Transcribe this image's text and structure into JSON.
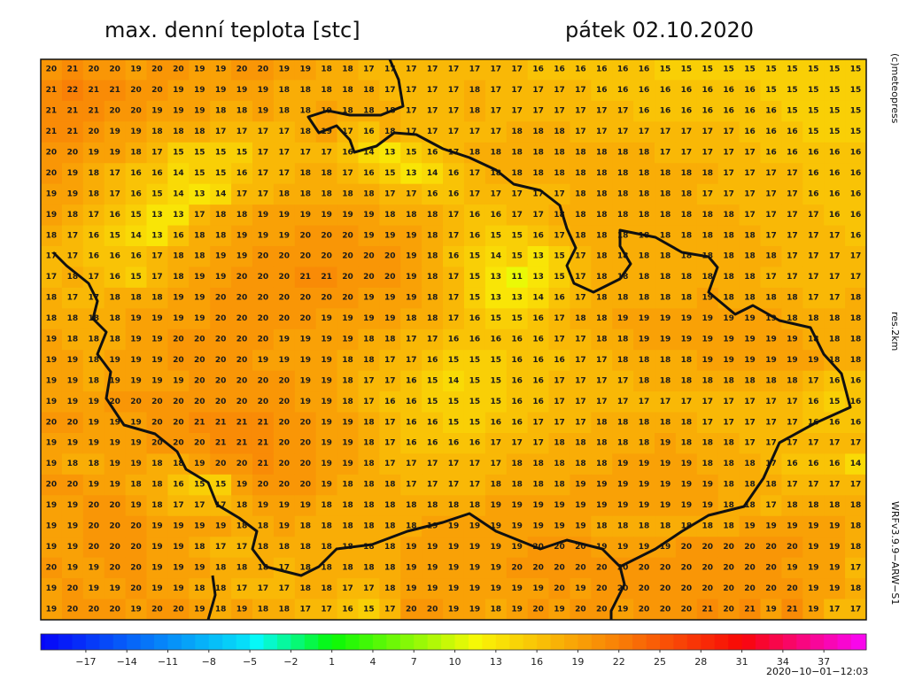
{
  "header": {
    "title": "max. denní teplota [stc]",
    "date": "pátek 02.10.2020"
  },
  "side": {
    "copyright": "(c)meteopress",
    "resolution": "res.2km",
    "model": "WRFv3.9.9−ARW−S1"
  },
  "timestamp": "2020−10−01−12:03",
  "colorbar": {
    "lim": [
      -20.3,
      40.1
    ],
    "ticks": [
      {
        "value": -17,
        "label": "−17"
      },
      {
        "value": -14,
        "label": "−14"
      },
      {
        "value": -11,
        "label": "−11"
      },
      {
        "value": -8,
        "label": "−8"
      },
      {
        "value": -5,
        "label": "−5"
      },
      {
        "value": -2,
        "label": "−2"
      },
      1,
      4,
      7,
      10,
      13,
      16,
      19,
      22,
      25,
      28,
      31,
      34,
      37
    ]
  },
  "grid": {
    "rows": [
      [
        20,
        21,
        20,
        20,
        19,
        20,
        20,
        19,
        19,
        20,
        20,
        19,
        19,
        18,
        18,
        17,
        17,
        17,
        17,
        17,
        17,
        17,
        17,
        16,
        16,
        16,
        16,
        16,
        16,
        15,
        15,
        15,
        15,
        15,
        15,
        15,
        15,
        15,
        15
      ],
      [
        21,
        22,
        21,
        21,
        20,
        20,
        19,
        19,
        19,
        19,
        19,
        18,
        18,
        18,
        18,
        18,
        17,
        17,
        17,
        17,
        18,
        17,
        17,
        17,
        17,
        17,
        16,
        16,
        16,
        16,
        16,
        16,
        16,
        16,
        15,
        15,
        15,
        15,
        15
      ],
      [
        21,
        21,
        21,
        20,
        20,
        19,
        19,
        19,
        18,
        18,
        19,
        18,
        18,
        19,
        18,
        18,
        18,
        17,
        17,
        17,
        18,
        17,
        17,
        17,
        17,
        17,
        17,
        17,
        16,
        16,
        16,
        16,
        16,
        16,
        16,
        15,
        15,
        15,
        15
      ],
      [
        21,
        21,
        20,
        19,
        19,
        18,
        18,
        18,
        17,
        17,
        17,
        17,
        18,
        19,
        17,
        16,
        18,
        17,
        17,
        17,
        17,
        17,
        18,
        18,
        18,
        17,
        17,
        17,
        17,
        17,
        17,
        17,
        17,
        16,
        16,
        16,
        15,
        15,
        15
      ],
      [
        20,
        20,
        19,
        19,
        18,
        17,
        15,
        15,
        15,
        15,
        17,
        17,
        17,
        17,
        16,
        14,
        13,
        15,
        16,
        17,
        18,
        18,
        18,
        18,
        18,
        18,
        18,
        18,
        18,
        17,
        17,
        17,
        17,
        17,
        16,
        16,
        16,
        16,
        16
      ],
      [
        20,
        19,
        18,
        17,
        16,
        16,
        14,
        15,
        15,
        16,
        17,
        17,
        18,
        18,
        17,
        16,
        15,
        13,
        14,
        16,
        17,
        18,
        18,
        18,
        18,
        18,
        18,
        18,
        18,
        18,
        18,
        18,
        17,
        17,
        17,
        17,
        16,
        16,
        16
      ],
      [
        19,
        19,
        18,
        17,
        16,
        15,
        14,
        13,
        14,
        17,
        17,
        18,
        18,
        18,
        18,
        18,
        17,
        17,
        16,
        16,
        17,
        17,
        17,
        17,
        17,
        18,
        18,
        18,
        18,
        18,
        18,
        17,
        17,
        17,
        17,
        17,
        16,
        16,
        16
      ],
      [
        19,
        18,
        17,
        16,
        15,
        13,
        13,
        17,
        18,
        18,
        19,
        19,
        19,
        19,
        19,
        19,
        18,
        18,
        18,
        17,
        16,
        16,
        17,
        17,
        18,
        18,
        18,
        18,
        18,
        18,
        18,
        18,
        18,
        17,
        17,
        17,
        17,
        16,
        16
      ],
      [
        18,
        17,
        16,
        15,
        14,
        13,
        16,
        18,
        18,
        19,
        19,
        19,
        20,
        20,
        20,
        19,
        19,
        19,
        18,
        17,
        16,
        15,
        15,
        16,
        17,
        18,
        18,
        18,
        18,
        18,
        18,
        18,
        18,
        18,
        17,
        17,
        17,
        17,
        16
      ],
      [
        17,
        17,
        16,
        16,
        16,
        17,
        18,
        18,
        19,
        19,
        20,
        20,
        20,
        20,
        20,
        20,
        20,
        19,
        18,
        16,
        15,
        14,
        15,
        13,
        15,
        17,
        18,
        18,
        18,
        18,
        18,
        18,
        18,
        18,
        18,
        17,
        17,
        17,
        17
      ],
      [
        17,
        18,
        17,
        16,
        15,
        17,
        18,
        19,
        19,
        20,
        20,
        20,
        21,
        21,
        20,
        20,
        20,
        19,
        18,
        17,
        15,
        13,
        11,
        13,
        15,
        17,
        18,
        18,
        18,
        18,
        18,
        18,
        18,
        18,
        17,
        17,
        17,
        17,
        17
      ],
      [
        18,
        17,
        17,
        18,
        18,
        18,
        19,
        19,
        20,
        20,
        20,
        20,
        20,
        20,
        20,
        19,
        19,
        19,
        18,
        17,
        15,
        13,
        13,
        14,
        16,
        17,
        18,
        18,
        18,
        18,
        18,
        19,
        18,
        18,
        18,
        18,
        17,
        17,
        18
      ],
      [
        18,
        18,
        18,
        18,
        19,
        19,
        19,
        19,
        20,
        20,
        20,
        20,
        20,
        19,
        19,
        19,
        19,
        18,
        18,
        17,
        16,
        15,
        15,
        16,
        17,
        18,
        18,
        19,
        19,
        19,
        19,
        19,
        19,
        19,
        19,
        18,
        18,
        18,
        18
      ],
      [
        19,
        18,
        18,
        18,
        19,
        19,
        20,
        20,
        20,
        20,
        20,
        19,
        19,
        19,
        19,
        18,
        18,
        17,
        17,
        16,
        16,
        16,
        16,
        16,
        17,
        17,
        18,
        18,
        19,
        19,
        19,
        19,
        19,
        19,
        19,
        19,
        18,
        18,
        18
      ],
      [
        19,
        19,
        18,
        19,
        19,
        19,
        20,
        20,
        20,
        20,
        19,
        19,
        19,
        19,
        18,
        18,
        17,
        17,
        16,
        15,
        15,
        15,
        16,
        16,
        16,
        17,
        17,
        18,
        18,
        18,
        18,
        19,
        19,
        19,
        19,
        19,
        19,
        18,
        18
      ],
      [
        19,
        19,
        18,
        19,
        19,
        19,
        19,
        20,
        20,
        20,
        20,
        20,
        19,
        19,
        18,
        17,
        17,
        16,
        15,
        14,
        15,
        15,
        16,
        16,
        17,
        17,
        17,
        17,
        18,
        18,
        18,
        18,
        18,
        18,
        18,
        18,
        17,
        16,
        16
      ],
      [
        19,
        19,
        19,
        20,
        20,
        20,
        20,
        20,
        20,
        20,
        20,
        20,
        19,
        19,
        18,
        17,
        16,
        16,
        15,
        15,
        15,
        15,
        16,
        16,
        17,
        17,
        17,
        17,
        17,
        17,
        17,
        17,
        17,
        17,
        17,
        17,
        16,
        15,
        16
      ],
      [
        20,
        20,
        19,
        19,
        19,
        20,
        20,
        21,
        21,
        21,
        21,
        20,
        20,
        19,
        19,
        18,
        17,
        16,
        16,
        15,
        15,
        16,
        16,
        17,
        17,
        17,
        18,
        18,
        18,
        18,
        18,
        17,
        17,
        17,
        17,
        17,
        16,
        16,
        16
      ],
      [
        19,
        19,
        19,
        19,
        19,
        20,
        20,
        20,
        21,
        21,
        21,
        20,
        20,
        19,
        19,
        18,
        17,
        16,
        16,
        16,
        16,
        17,
        17,
        17,
        18,
        18,
        18,
        18,
        18,
        19,
        18,
        18,
        18,
        17,
        17,
        17,
        17,
        17,
        17
      ],
      [
        19,
        18,
        18,
        19,
        19,
        18,
        18,
        19,
        20,
        20,
        21,
        20,
        20,
        19,
        19,
        18,
        17,
        17,
        17,
        17,
        17,
        17,
        18,
        18,
        18,
        18,
        18,
        19,
        19,
        19,
        19,
        18,
        18,
        18,
        17,
        16,
        16,
        16,
        14
      ],
      [
        20,
        20,
        19,
        19,
        18,
        18,
        16,
        15,
        15,
        19,
        20,
        20,
        20,
        19,
        18,
        18,
        18,
        17,
        17,
        17,
        17,
        18,
        18,
        18,
        18,
        19,
        19,
        19,
        19,
        19,
        19,
        19,
        18,
        18,
        18,
        17,
        17,
        17,
        17
      ],
      [
        19,
        19,
        20,
        20,
        19,
        18,
        17,
        17,
        17,
        18,
        19,
        19,
        19,
        18,
        18,
        18,
        18,
        18,
        18,
        18,
        18,
        19,
        19,
        19,
        19,
        19,
        19,
        19,
        19,
        19,
        19,
        19,
        18,
        18,
        17,
        18,
        18,
        18,
        18
      ],
      [
        19,
        19,
        20,
        20,
        20,
        19,
        19,
        19,
        19,
        18,
        18,
        19,
        18,
        18,
        18,
        18,
        18,
        18,
        19,
        19,
        19,
        19,
        19,
        19,
        19,
        19,
        18,
        18,
        18,
        18,
        18,
        18,
        18,
        19,
        19,
        19,
        19,
        19,
        18
      ],
      [
        19,
        19,
        20,
        20,
        20,
        19,
        19,
        18,
        17,
        17,
        18,
        18,
        18,
        18,
        18,
        18,
        18,
        19,
        19,
        19,
        19,
        19,
        19,
        20,
        20,
        20,
        19,
        19,
        19,
        19,
        20,
        20,
        20,
        20,
        20,
        20,
        19,
        19,
        18
      ],
      [
        20,
        19,
        19,
        20,
        20,
        19,
        19,
        19,
        18,
        18,
        18,
        17,
        18,
        18,
        18,
        18,
        18,
        19,
        19,
        19,
        19,
        19,
        20,
        20,
        20,
        20,
        20,
        20,
        20,
        20,
        20,
        20,
        20,
        20,
        20,
        19,
        19,
        19,
        17
      ],
      [
        19,
        20,
        19,
        19,
        20,
        19,
        19,
        18,
        18,
        17,
        17,
        17,
        18,
        18,
        17,
        17,
        18,
        19,
        19,
        19,
        19,
        19,
        19,
        19,
        20,
        19,
        20,
        20,
        20,
        20,
        20,
        20,
        20,
        20,
        20,
        20,
        19,
        19,
        18
      ],
      [
        19,
        20,
        20,
        20,
        19,
        20,
        20,
        19,
        18,
        19,
        18,
        18,
        17,
        17,
        16,
        15,
        17,
        20,
        20,
        19,
        19,
        18,
        19,
        20,
        19,
        20,
        20,
        19,
        20,
        20,
        20,
        21,
        20,
        21,
        19,
        21,
        19,
        17,
        17
      ]
    ]
  }
}
